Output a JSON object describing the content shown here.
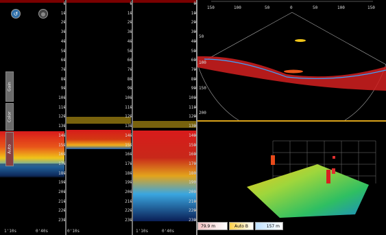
{
  "echogram": {
    "depth_ticks": [
      "0",
      "10",
      "20",
      "30",
      "40",
      "50",
      "60",
      "70",
      "80",
      "90",
      "100",
      "110",
      "120",
      "130",
      "140",
      "150",
      "160",
      "170",
      "180",
      "190",
      "200",
      "210",
      "220",
      "230"
    ],
    "time_labels": [
      "1'10s",
      "0'40s",
      "0'10s"
    ],
    "buttons": [
      {
        "name": "back-button",
        "glyph": "↺"
      },
      {
        "name": "settings-button",
        "glyph": "●"
      }
    ],
    "side_tabs": [
      "Gain",
      "Color",
      "Auto"
    ]
  },
  "sonar": {
    "range_labels": [
      "150",
      "100",
      "50",
      "0",
      "50",
      "100",
      "150"
    ],
    "depth_labels": [
      "50",
      "100",
      "150",
      "200"
    ]
  },
  "status": {
    "left_value": "79.9 m",
    "mode": "Auto B",
    "right_value": "157 m"
  }
}
